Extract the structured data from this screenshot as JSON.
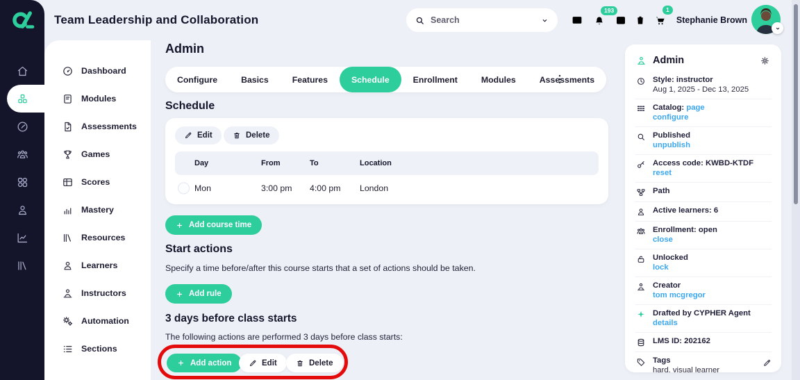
{
  "colors": {
    "accent_green": "#2ecd9c",
    "dark_navy": "#14142b",
    "link_blue": "#3aa7f0",
    "annotation_red": "#e30b0b",
    "background": "#edf0f6"
  },
  "topbar": {
    "title": "Team Leadership and Collaboration",
    "search": {
      "placeholder": "Search"
    },
    "action_icons": [
      "mail",
      "bell",
      "calendar",
      "trash",
      "cart"
    ],
    "badges": {
      "notifications": "193",
      "cart": "1"
    },
    "user": {
      "name": "Stephanie Brown"
    }
  },
  "rail": {
    "items": [
      {
        "id": "home",
        "icon": "home",
        "active": false
      },
      {
        "id": "modules",
        "icon": "cubes",
        "active": true
      },
      {
        "id": "gauge",
        "icon": "gauge",
        "active": false
      },
      {
        "id": "people",
        "icon": "users",
        "active": false
      },
      {
        "id": "apps",
        "icon": "grid",
        "active": false
      },
      {
        "id": "profile",
        "icon": "person",
        "active": false
      },
      {
        "id": "analytics",
        "icon": "chart",
        "active": false
      },
      {
        "id": "library",
        "icon": "library",
        "active": false
      }
    ]
  },
  "sidebar": {
    "items": [
      {
        "label": "Dashboard",
        "icon": "speedo"
      },
      {
        "label": "Modules",
        "icon": "book"
      },
      {
        "label": "Assessments",
        "icon": "doc"
      },
      {
        "label": "Games",
        "icon": "trophy"
      },
      {
        "label": "Scores",
        "icon": "table"
      },
      {
        "label": "Mastery",
        "icon": "bars"
      },
      {
        "label": "Resources",
        "icon": "library"
      },
      {
        "label": "Learners",
        "icon": "person"
      },
      {
        "label": "Instructors",
        "icon": "instructor"
      },
      {
        "label": "Automation",
        "icon": "gears"
      },
      {
        "label": "Sections",
        "icon": "list"
      }
    ]
  },
  "main": {
    "heading": "Admin",
    "tabs": [
      "Configure",
      "Basics",
      "Features",
      "Schedule",
      "Enrollment",
      "Modules",
      "Assessments"
    ],
    "active_tab": "Schedule",
    "schedule": {
      "heading": "Schedule",
      "edit_label": "Edit",
      "delete_label": "Delete",
      "table": {
        "headers": [
          "Day",
          "From",
          "To",
          "Location"
        ],
        "rows": [
          [
            "Mon",
            "3:00 pm",
            "4:00 pm",
            "London"
          ]
        ]
      },
      "add_course_time_label": "Add course time"
    },
    "start_actions": {
      "heading": "Start actions",
      "description": "Specify a time before/after this course starts that a set of actions should be taken.",
      "add_rule_label": "Add rule"
    },
    "three_days": {
      "heading": "3 days before class starts",
      "description": "The following actions are performed 3 days before class starts:",
      "add_action_label": "Add action",
      "edit_label": "Edit",
      "delete_label": "Delete"
    }
  },
  "right_panel": {
    "title": "Admin",
    "rows": [
      {
        "id": "style",
        "icon": "clock",
        "line1": "Style: instructor",
        "line2": "Aug 1, 2025 - Dec 13, 2025",
        "line2_type": "text"
      },
      {
        "id": "catalog",
        "icon": "cgrid",
        "line1": "Catalog: ",
        "line1_link": "page",
        "line2": "configure",
        "line2_type": "link"
      },
      {
        "id": "published",
        "icon": "search",
        "line1": "Published",
        "line2": "unpublish",
        "line2_type": "link"
      },
      {
        "id": "access-code",
        "icon": "key",
        "line1": "Access code: KWBD-KTDF",
        "line2": "reset",
        "line2_type": "link"
      },
      {
        "id": "path",
        "icon": "path",
        "line1": "Path"
      },
      {
        "id": "active-learners",
        "icon": "person",
        "line1": "Active learners: 6"
      },
      {
        "id": "enrollment",
        "icon": "users",
        "line1": "Enrollment: open",
        "line2": "close",
        "line2_type": "link"
      },
      {
        "id": "locked",
        "icon": "unlock",
        "line1": "Unlocked",
        "line2": "lock",
        "line2_type": "link"
      },
      {
        "id": "creator",
        "icon": "instructor",
        "line1": "Creator",
        "line2": "tom mcgregor",
        "line2_type": "link"
      },
      {
        "id": "drafted",
        "icon": "sparkle",
        "icon_green": true,
        "line1": "Drafted by CYPHER Agent",
        "line2": "details",
        "line2_type": "link"
      },
      {
        "id": "lms-id",
        "icon": "db",
        "line1": "LMS ID: 202162"
      },
      {
        "id": "tags",
        "icon": "tag",
        "line1": "Tags",
        "line2": "hard, visual learner",
        "line2_type": "text",
        "editable": true
      }
    ]
  }
}
